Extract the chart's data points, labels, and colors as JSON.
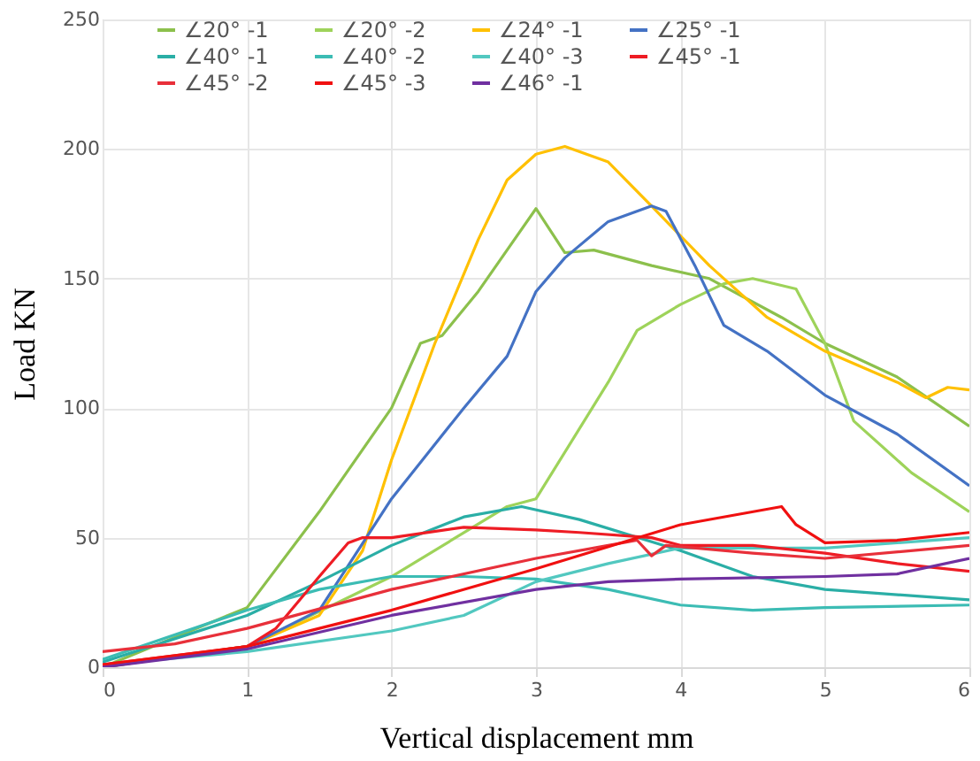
{
  "chart_data": {
    "type": "line",
    "xlabel": "Vertical displacement mm",
    "ylabel": "Load KN",
    "xlim": [
      0,
      6
    ],
    "xticks": [
      0,
      1,
      2,
      3,
      4,
      5,
      6
    ],
    "ylim": [
      0,
      250
    ],
    "yticks": [
      0,
      50,
      100,
      150,
      200,
      250
    ],
    "grid": true,
    "legend": "top",
    "marker": "none",
    "line_style": "solid",
    "series": [
      {
        "name": "∠20° -1",
        "color": "#8cc04c",
        "x": [
          0,
          1,
          1.5,
          2,
          2.2,
          2.35,
          2.6,
          3.0,
          3.2,
          3.4,
          3.8,
          4.2,
          4.7,
          5,
          5.5,
          6
        ],
        "values": [
          0,
          23,
          60,
          100,
          125,
          128,
          145,
          177,
          160,
          161,
          155,
          150,
          135,
          125,
          112,
          93
        ]
      },
      {
        "name": "∠20° -2",
        "color": "#9ed35a",
        "x": [
          0,
          1,
          2,
          2.8,
          3,
          3.5,
          3.7,
          4,
          4.3,
          4.5,
          4.8,
          5.0,
          5.2,
          5.6,
          6
        ],
        "values": [
          0,
          8,
          35,
          62,
          65,
          110,
          130,
          140,
          148,
          150,
          146,
          125,
          95,
          75,
          60
        ]
      },
      {
        "name": "∠24° -1",
        "color": "#ffc000",
        "x": [
          0,
          1,
          1.5,
          1.8,
          2,
          2.3,
          2.6,
          2.8,
          3.0,
          3.2,
          3.5,
          3.8,
          4.2,
          4.6,
          5,
          5.5,
          5.7,
          5.85,
          6
        ],
        "values": [
          0,
          8,
          20,
          45,
          80,
          125,
          165,
          188,
          198,
          201,
          195,
          178,
          155,
          135,
          122,
          110,
          104,
          108,
          107
        ]
      },
      {
        "name": "∠25° -1",
        "color": "#4472c4",
        "x": [
          0,
          1,
          1.5,
          2,
          2.5,
          2.8,
          3.0,
          3.2,
          3.5,
          3.8,
          3.9,
          4.1,
          4.3,
          4.6,
          5,
          5.5,
          6
        ],
        "values": [
          0,
          8,
          22,
          65,
          100,
          120,
          145,
          158,
          172,
          178,
          176,
          155,
          132,
          122,
          105,
          90,
          70
        ]
      },
      {
        "name": "∠40° -1",
        "color": "#2aaea6",
        "x": [
          0,
          1,
          1.5,
          2,
          2.5,
          2.9,
          3.3,
          4,
          4.5,
          5,
          6
        ],
        "values": [
          2,
          20,
          33,
          47,
          58,
          62,
          57,
          45,
          35,
          30,
          26
        ]
      },
      {
        "name": "∠40° -2",
        "color": "#3cbcb4",
        "x": [
          0,
          1,
          1.5,
          2,
          2.5,
          3,
          3.5,
          4,
          4.5,
          5,
          6
        ],
        "values": [
          3,
          22,
          30,
          35,
          35,
          34,
          30,
          24,
          22,
          23,
          24
        ]
      },
      {
        "name": "∠40° -3",
        "color": "#52c8c0",
        "x": [
          0,
          1,
          2,
          2.5,
          3,
          3.5,
          4,
          4.5,
          5,
          6
        ],
        "values": [
          1,
          6,
          14,
          20,
          33,
          40,
          46,
          46,
          46,
          50
        ]
      },
      {
        "name": "∠45° -1",
        "color": "#ee1c24",
        "x": [
          0,
          1,
          1.2,
          1.5,
          1.7,
          1.8,
          2,
          2.5,
          3,
          3.3,
          3.8,
          4,
          4.5,
          5,
          5.5,
          6
        ],
        "values": [
          1,
          8,
          15,
          35,
          48,
          50,
          50,
          54,
          53,
          52,
          50,
          47,
          47,
          44,
          40,
          37
        ]
      },
      {
        "name": "∠45° -2",
        "color": "#e8303a",
        "x": [
          0,
          0.5,
          1,
          2,
          3,
          3.5,
          3.7,
          3.8,
          3.9,
          4.5,
          5,
          6
        ],
        "values": [
          6,
          9,
          15,
          30,
          42,
          47,
          49,
          43,
          47,
          44,
          42,
          47
        ]
      },
      {
        "name": "∠45° -3",
        "color": "#f01010",
        "x": [
          0,
          1,
          2,
          3,
          4,
          4.7,
          4.8,
          5,
          5.5,
          6
        ],
        "values": [
          1,
          8,
          22,
          38,
          55,
          62,
          55,
          48,
          49,
          52
        ]
      },
      {
        "name": "∠46° -1",
        "color": "#7030a0",
        "x": [
          0,
          1,
          2,
          3,
          3.5,
          4,
          5,
          5.5,
          6
        ],
        "values": [
          0,
          7,
          20,
          30,
          33,
          34,
          35,
          36,
          42
        ]
      }
    ]
  }
}
